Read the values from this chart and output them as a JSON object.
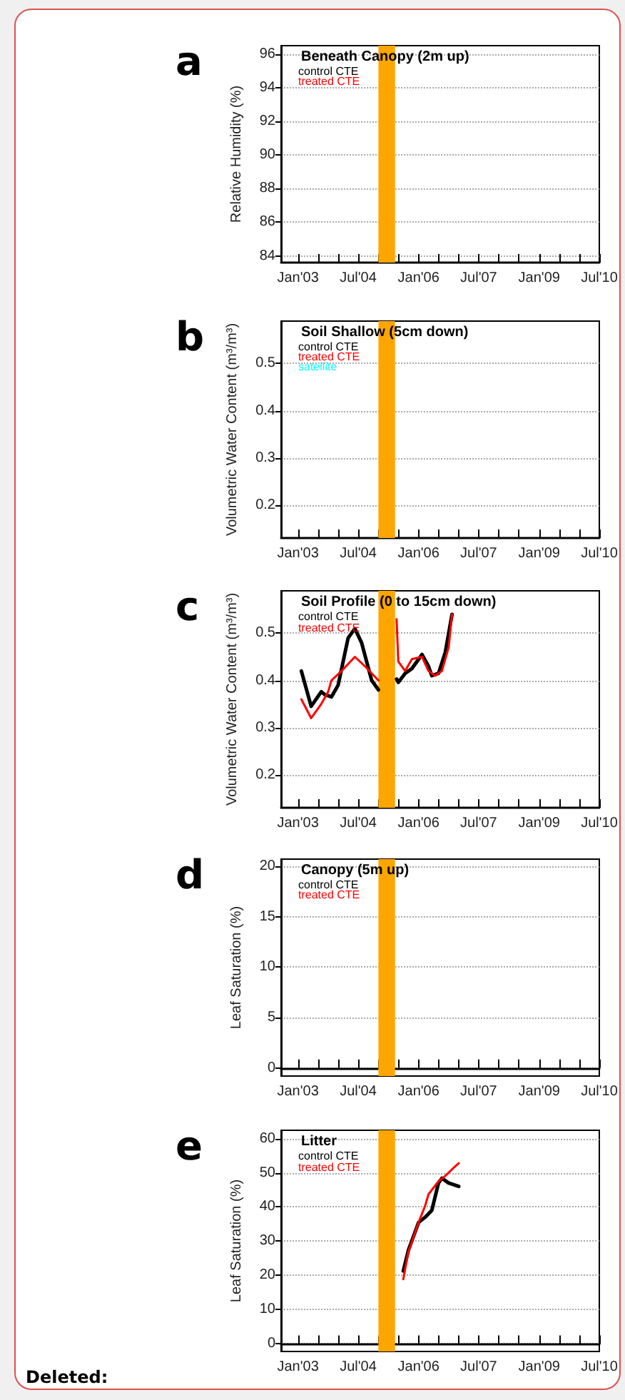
{
  "chart_data": [
    {
      "type": "line",
      "title": "a",
      "subtitle": "Beneath Canopy (2m up)",
      "ylabel": "Relative Humidity (%)",
      "xlim": [
        "2002-08",
        "2010-07"
      ],
      "ylim": [
        83.6,
        96.5
      ],
      "yticks": [
        84,
        86,
        88,
        90,
        92,
        94,
        96
      ],
      "xticks": [
        {
          "value": "2003-01",
          "label": "Jan'03"
        },
        {
          "value": "2003-07",
          "label": null
        },
        {
          "value": "2004-01",
          "label": null
        },
        {
          "value": "2004-07",
          "label": "Jul'04"
        },
        {
          "value": "2005-01",
          "label": null
        },
        {
          "value": "2005-07",
          "label": null
        },
        {
          "value": "2006-01",
          "label": "Jan'06"
        },
        {
          "value": "2006-07",
          "label": null
        },
        {
          "value": "2007-01",
          "label": null
        },
        {
          "value": "2007-07",
          "label": "Jul'07"
        },
        {
          "value": "2008-01",
          "label": null
        },
        {
          "value": "2008-07",
          "label": null
        },
        {
          "value": "2009-01",
          "label": "Jan'09"
        },
        {
          "value": "2009-07",
          "label": null
        },
        {
          "value": "2010-01",
          "label": null
        },
        {
          "value": "2010-07",
          "label": "Jul'10"
        }
      ],
      "bands": [
        {
          "axis": "x",
          "from": "2005-01",
          "to": "2005-06",
          "color": "#ffa500"
        }
      ],
      "grid": "y",
      "marker": "none",
      "line_style": "solid",
      "series": [
        {
          "name": "control CTE",
          "color": "#000000",
          "x": [
            null
          ],
          "values": [
            null
          ]
        },
        {
          "name": "treated CTE",
          "color": "#ff0000",
          "x": [
            null
          ],
          "values": [
            null
          ]
        }
      ]
    },
    {
      "type": "line",
      "title": "b",
      "subtitle": "Soil Shallow (5cm down)",
      "ylabel": "Volumetric Water Content (m³/m³)",
      "xlim": [
        "2002-08",
        "2010-07"
      ],
      "ylim": [
        0.13,
        0.59
      ],
      "yticks": [
        0.2,
        0.3,
        0.4,
        0.5
      ],
      "xticks": [
        {
          "value": "2003-01",
          "label": "Jan'03"
        },
        {
          "value": "2003-07",
          "label": null
        },
        {
          "value": "2004-01",
          "label": null
        },
        {
          "value": "2004-07",
          "label": "Jul'04"
        },
        {
          "value": "2005-01",
          "label": null
        },
        {
          "value": "2005-07",
          "label": null
        },
        {
          "value": "2006-01",
          "label": "Jan'06"
        },
        {
          "value": "2006-07",
          "label": null
        },
        {
          "value": "2007-01",
          "label": null
        },
        {
          "value": "2007-07",
          "label": "Jul'07"
        },
        {
          "value": "2008-01",
          "label": null
        },
        {
          "value": "2008-07",
          "label": null
        },
        {
          "value": "2009-01",
          "label": "Jan'09"
        },
        {
          "value": "2009-07",
          "label": null
        },
        {
          "value": "2010-01",
          "label": null
        },
        {
          "value": "2010-07",
          "label": "Jul'10"
        }
      ],
      "bands": [
        {
          "axis": "x",
          "from": "2005-01",
          "to": "2005-06",
          "color": "#ffa500"
        }
      ],
      "grid": "y",
      "marker": "none",
      "line_style": "solid",
      "series": [
        {
          "name": "control CTE",
          "color": "#000000",
          "x": [
            null
          ],
          "values": [
            null
          ]
        },
        {
          "name": "treated CTE",
          "color": "#ff0000",
          "x": [
            null
          ],
          "values": [
            null
          ]
        },
        {
          "name": "satellite",
          "color": "#00ffff",
          "x": [
            null
          ],
          "values": [
            null
          ]
        }
      ]
    },
    {
      "type": "line",
      "title": "c",
      "subtitle": "Soil Profile (0 to 15cm down)",
      "ylabel": "Volumetric Water Content (m³/m³)",
      "xlim": [
        "2002-08",
        "2010-07"
      ],
      "ylim": [
        0.13,
        0.59
      ],
      "yticks": [
        0.2,
        0.3,
        0.4,
        0.5
      ],
      "xticks": [
        {
          "value": "2003-01",
          "label": "Jan'03"
        },
        {
          "value": "2003-07",
          "label": null
        },
        {
          "value": "2004-01",
          "label": null
        },
        {
          "value": "2004-07",
          "label": "Jul'04"
        },
        {
          "value": "2005-01",
          "label": null
        },
        {
          "value": "2005-07",
          "label": null
        },
        {
          "value": "2006-01",
          "label": "Jan'06"
        },
        {
          "value": "2006-07",
          "label": null
        },
        {
          "value": "2007-01",
          "label": null
        },
        {
          "value": "2007-07",
          "label": "Jul'07"
        },
        {
          "value": "2008-01",
          "label": null
        },
        {
          "value": "2008-07",
          "label": null
        },
        {
          "value": "2009-01",
          "label": "Jan'09"
        },
        {
          "value": "2009-07",
          "label": null
        },
        {
          "value": "2010-01",
          "label": null
        },
        {
          "value": "2010-07",
          "label": "Jul'10"
        }
      ],
      "bands": [
        {
          "axis": "x",
          "from": "2005-01",
          "to": "2005-06",
          "color": "#ffa500"
        }
      ],
      "grid": "y",
      "legend": "top left",
      "marker": "none",
      "line_style": "solid",
      "series": [
        {
          "name": "control CTE",
          "color": "#000000",
          "x": [
            "2003-02",
            "2003-05",
            "2003-08",
            "2003-09",
            "2003-11",
            "2004-01",
            "2004-04",
            "2004-06",
            "2004-08",
            "2004-11",
            "2005-01",
            null,
            "2005-06-15",
            "2005-07",
            "2005-09",
            "2005-11",
            "2006-02",
            "2006-04",
            "2006-05",
            "2006-07",
            "2006-09",
            "2006-11"
          ],
          "values": [
            0.42,
            0.345,
            0.376,
            0.37,
            0.365,
            0.39,
            0.49,
            0.51,
            0.48,
            0.4,
            0.38,
            null,
            0.403,
            0.396,
            0.415,
            0.425,
            0.455,
            0.43,
            0.41,
            0.415,
            0.46,
            0.54
          ]
        },
        {
          "name": "treated CTE",
          "color": "#ff0000",
          "x": [
            "2003-02",
            "2003-05",
            "2003-08",
            "2003-10",
            "2003-11",
            "2004-02",
            "2004-06",
            "2004-09",
            "2005-01",
            null,
            "2005-06-15",
            "2005-07",
            "2005-09",
            "2005-11",
            "2006-02",
            "2006-04",
            "2006-06",
            "2006-08",
            "2006-10",
            "2006-11"
          ],
          "values": [
            0.36,
            0.32,
            0.35,
            0.375,
            0.4,
            0.42,
            0.45,
            0.43,
            0.4,
            null,
            0.53,
            0.44,
            0.42,
            0.445,
            0.45,
            0.42,
            0.41,
            0.42,
            0.47,
            0.54
          ]
        }
      ]
    },
    {
      "type": "line",
      "title": "d",
      "subtitle": "Canopy (5m up)",
      "ylabel": "Leaf Saturation (%)",
      "xlim": [
        "2002-08",
        "2010-07"
      ],
      "ylim": [
        -0.8,
        20.7
      ],
      "yticks": [
        0,
        5,
        10,
        15,
        20
      ],
      "xticks": [
        {
          "value": "2003-01",
          "label": "Jan'03"
        },
        {
          "value": "2003-07",
          "label": null
        },
        {
          "value": "2004-01",
          "label": null
        },
        {
          "value": "2004-07",
          "label": "Jul'04"
        },
        {
          "value": "2005-01",
          "label": null
        },
        {
          "value": "2005-07",
          "label": null
        },
        {
          "value": "2006-01",
          "label": "Jan'06"
        },
        {
          "value": "2006-07",
          "label": null
        },
        {
          "value": "2007-01",
          "label": null
        },
        {
          "value": "2007-07",
          "label": "Jul'07"
        },
        {
          "value": "2008-01",
          "label": null
        },
        {
          "value": "2008-07",
          "label": null
        },
        {
          "value": "2009-01",
          "label": "Jan'09"
        },
        {
          "value": "2009-07",
          "label": null
        },
        {
          "value": "2010-01",
          "label": null
        },
        {
          "value": "2010-07",
          "label": "Jul'10"
        }
      ],
      "bands": [
        {
          "axis": "x",
          "from": "2005-01",
          "to": "2005-06",
          "color": "#ffa500"
        }
      ],
      "grid": "y",
      "marker": "none",
      "line_style": "solid",
      "series": [
        {
          "name": "control CTE",
          "color": "#000000",
          "x": [
            null
          ],
          "values": [
            null
          ]
        },
        {
          "name": "treated CTE",
          "color": "#ff0000",
          "x": [
            null
          ],
          "values": [
            null
          ]
        }
      ]
    },
    {
      "type": "line",
      "title": "e",
      "subtitle": "Litter",
      "ylabel": "Leaf Saturation (%)",
      "annotations": [
        "Deleted:"
      ],
      "xlim": [
        "2002-08",
        "2010-07"
      ],
      "ylim": [
        -2.2,
        62.4
      ],
      "yticks": [
        0,
        10,
        20,
        30,
        40,
        50,
        60
      ],
      "xticks": [
        {
          "value": "2003-01",
          "label": "Jan'03"
        },
        {
          "value": "2003-07",
          "label": null
        },
        {
          "value": "2004-01",
          "label": null
        },
        {
          "value": "2004-07",
          "label": "Jul'04"
        },
        {
          "value": "2005-01",
          "label": null
        },
        {
          "value": "2005-07",
          "label": null
        },
        {
          "value": "2006-01",
          "label": "Jan'06"
        },
        {
          "value": "2006-07",
          "label": null
        },
        {
          "value": "2007-01",
          "label": null
        },
        {
          "value": "2007-07",
          "label": "Jul'07"
        },
        {
          "value": "2008-01",
          "label": null
        },
        {
          "value": "2008-07",
          "label": null
        },
        {
          "value": "2009-01",
          "label": "Jan'09"
        },
        {
          "value": "2009-07",
          "label": null
        },
        {
          "value": "2010-01",
          "label": null
        },
        {
          "value": "2010-07",
          "label": "Jul'10"
        }
      ],
      "bands": [
        {
          "axis": "x",
          "from": "2005-01",
          "to": "2005-06",
          "color": "#ffa500"
        }
      ],
      "grid": "y",
      "legend": "top left",
      "marker": "none",
      "line_style": "solid",
      "series": [
        {
          "name": "control CTE",
          "color": "#000000",
          "x": [
            "2005-08-15",
            "2005-10",
            "2006-01",
            "2006-03",
            "2006-05",
            "2006-07",
            "2006-08",
            "2006-10",
            "2007-01"
          ],
          "values": [
            21.3,
            27.4,
            35.5,
            37,
            39,
            47,
            48.4,
            47,
            46
          ]
        },
        {
          "name": "treated CTE",
          "color": "#ff0000",
          "x": [
            "2005-08-15",
            "2005-10",
            "2006-01",
            "2006-03",
            "2006-04",
            "2006-07",
            "2006-09",
            "2006-11",
            "2007-01"
          ],
          "values": [
            18.9,
            27,
            35.5,
            40.3,
            43.7,
            47.5,
            49.1,
            51,
            52.8
          ]
        }
      ]
    }
  ]
}
